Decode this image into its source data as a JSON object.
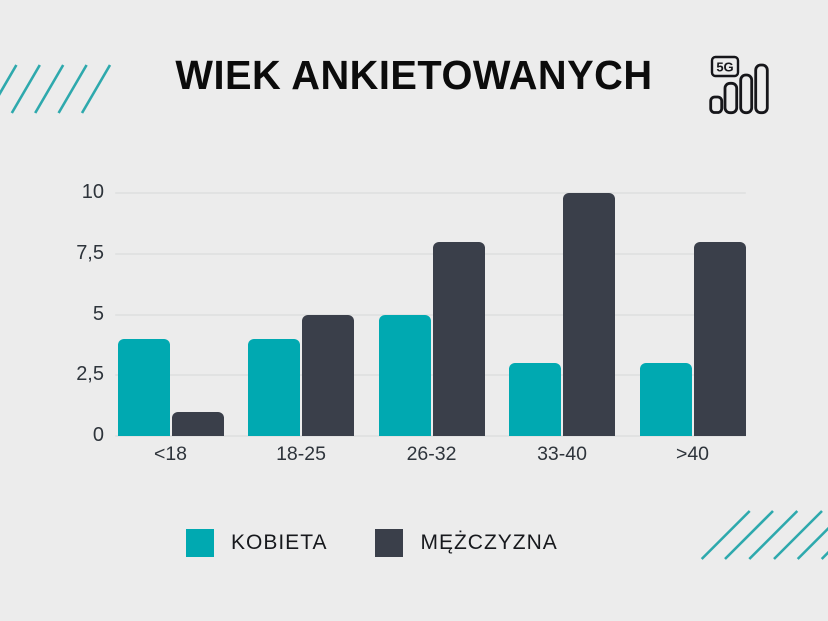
{
  "title": "WIEK ANKIETOWANYCH",
  "icon_5g": {
    "label": "5G"
  },
  "chart_data": {
    "type": "bar",
    "title": "WIEK ANKIETOWANYCH",
    "categories": [
      "<18",
      "18-25",
      "26-32",
      "33-40",
      ">40"
    ],
    "series": [
      {
        "name": "KOBIETA",
        "color": "#00a9b1",
        "values": [
          4,
          4,
          5,
          3,
          3
        ]
      },
      {
        "name": "MĘŻCZYZNA",
        "color": "#3a3f4a",
        "values": [
          1,
          5,
          8,
          10,
          8
        ]
      }
    ],
    "xlabel": "",
    "ylabel": "",
    "ylim": [
      0,
      10
    ],
    "yticks": [
      0,
      2.5,
      5,
      7.5,
      10
    ],
    "ytick_labels": [
      "0",
      "2,5",
      "5",
      "7,5",
      "10"
    ],
    "grid": true,
    "legend_position": "bottom"
  },
  "legend": {
    "items": [
      {
        "label": "KOBIETA",
        "color": "#00a9b1"
      },
      {
        "label": "MĘŻCZYZNA",
        "color": "#3a3f4a"
      }
    ]
  },
  "colors": {
    "background": "#ececec",
    "stripe": "#2ea9ad",
    "grid": "#e1e2e2",
    "axis_text": "#2e343b",
    "title": "#0c0c0c",
    "icon": "#16161a"
  }
}
